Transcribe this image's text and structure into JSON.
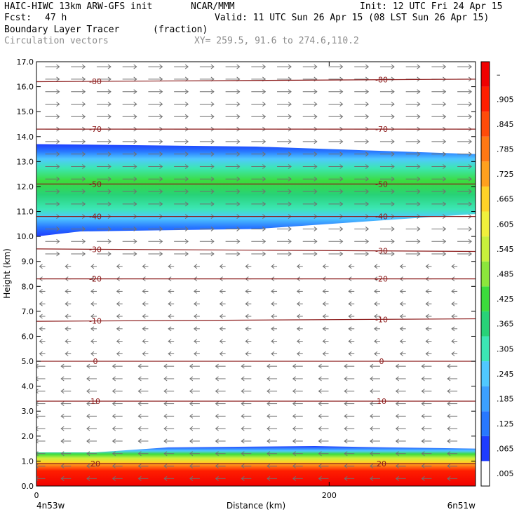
{
  "header": {
    "model_line": "HAIC-HIWC 13km ARW-GFS init",
    "org": "NCAR/MMM",
    "init": "Init: 12 UTC Fri 24 Apr 15",
    "fcst_label": "Fcst:",
    "fcst_value": "47 h",
    "valid": "Valid: 11 UTC Sun 26 Apr 15 (08 LST Sun 26 Apr 15)",
    "field": "Boundary Layer Tracer",
    "units": "(fraction)",
    "vectors": "Circulation vectors",
    "xy": "XY= 259.5, 91.6 to 274.6,110.2"
  },
  "chart_data": {
    "type": "heatmap",
    "ylabel": "Height (km)",
    "xlabel": "Distance (km)",
    "ylim": [
      0,
      17
    ],
    "xlim": [
      0,
      300
    ],
    "y_ticks": [
      "0.0",
      "1.0",
      "2.0",
      "3.0",
      "4.0",
      "5.0",
      "6.0",
      "7.0",
      "8.0",
      "9.0",
      "10.0",
      "11.0",
      "12.0",
      "13.0",
      "14.0",
      "15.0",
      "16.0",
      "17.0"
    ],
    "x_ticks": [
      {
        "value": 0,
        "label": "0"
      },
      {
        "value": 200,
        "label": "200"
      }
    ],
    "endpoints": {
      "left": "4n53w",
      "right": "6n51w"
    },
    "colorbar": {
      "labels": [
        ".005",
        ".065",
        ".125",
        ".185",
        ".245",
        ".305",
        ".365",
        ".425",
        ".485",
        ".545",
        ".605",
        ".665",
        ".725",
        ".785",
        ".845",
        ".905",
        "–"
      ],
      "colors": [
        "#ffffff",
        "#1e3cff",
        "#2878ff",
        "#3ca0ff",
        "#50c8ff",
        "#3ce6b4",
        "#28d278",
        "#3cdc3c",
        "#8ce63c",
        "#c8f03c",
        "#f0f03c",
        "#ffd228",
        "#ffa01e",
        "#ff7814",
        "#ff4b0a",
        "#ff1e00",
        "#f00000"
      ]
    },
    "tracer_layers": [
      {
        "name": "boundary layer",
        "bottom_km": 0.0,
        "top_km": [
          1.35,
          1.55,
          1.5
        ],
        "peak_fraction": 0.905
      },
      {
        "name": "upper layer",
        "bottom_km": [
          10.0,
          10.3,
          10.9
        ],
        "top_km": [
          13.7,
          13.6,
          13.3
        ],
        "peak_fraction": 0.365
      }
    ],
    "isotherms": [
      {
        "label": "-80",
        "y_km": 16.2,
        "y_km_right": 16.3
      },
      {
        "label": "-70",
        "y_km": 14.3,
        "y_km_right": 14.3
      },
      {
        "label": "-50",
        "y_km": 12.1,
        "y_km_right": 12.1
      },
      {
        "label": "-40",
        "y_km": 10.8,
        "y_km_right": 10.8
      },
      {
        "label": "-30",
        "y_km": 9.5,
        "y_km_right": 9.4
      },
      {
        "label": "-20",
        "y_km": 8.3,
        "y_km_right": 8.3
      },
      {
        "label": "-10",
        "y_km": 6.6,
        "y_km_right": 6.7
      },
      {
        "label": "0",
        "y_km": 5.0,
        "y_km_right": 5.0
      },
      {
        "label": "10",
        "y_km": 3.4,
        "y_km_right": 3.4
      },
      {
        "label": "20",
        "y_km": 0.9,
        "y_km_right": 0.9
      }
    ],
    "wind_vectors": {
      "direction_above_9km": "east",
      "direction_below_9km": "west"
    }
  }
}
